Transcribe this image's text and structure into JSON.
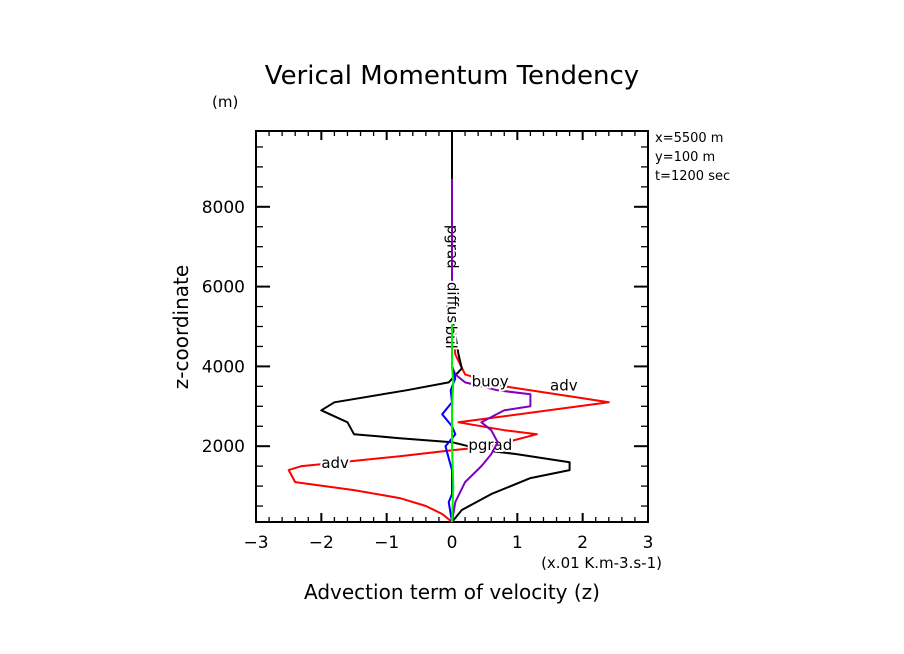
{
  "chart_data": {
    "type": "line",
    "title": "Verical Momentum Tendency",
    "xlabel": "Advection term of velocity (z)",
    "xunits": "(x.01 K.m-3.s-1)",
    "ylabel": "z-coordinate",
    "yunits": "(m)",
    "xlim": [
      -3,
      3
    ],
    "ylim": [
      100,
      9900
    ],
    "xticks": [
      -3,
      -2,
      -1,
      0,
      1,
      2,
      3
    ],
    "xtick_labels": [
      "−3",
      "−2",
      "−1",
      "0",
      "1",
      "2",
      "3"
    ],
    "yticks": [
      2000,
      4000,
      6000,
      8000
    ],
    "ytick_labels": [
      "2000",
      "4000",
      "6000",
      "8000"
    ],
    "grid": false,
    "annotations": [
      "x=5500 m",
      "y=100 m",
      "t=1200 sec"
    ],
    "series": [
      {
        "name": "adv",
        "color": "#ff0000",
        "points": [
          [
            0,
            100
          ],
          [
            -0.15,
            300
          ],
          [
            -0.4,
            500
          ],
          [
            -0.8,
            700
          ],
          [
            -1.5,
            900
          ],
          [
            -2.4,
            1100
          ],
          [
            -2.5,
            1400
          ],
          [
            -2.3,
            1500
          ],
          [
            -1.7,
            1600
          ],
          [
            -0.8,
            1750
          ],
          [
            0,
            1900
          ],
          [
            0.6,
            2000
          ],
          [
            1.3,
            2300
          ],
          [
            0.8,
            2400
          ],
          [
            0.1,
            2600
          ],
          [
            2.4,
            3100
          ],
          [
            1.6,
            3300
          ],
          [
            0.8,
            3500
          ],
          [
            0.2,
            3800
          ],
          [
            0.05,
            4300
          ],
          [
            0.02,
            5000
          ],
          [
            0,
            6000
          ]
        ],
        "label_positions": [
          {
            "x": -2.0,
            "z": 1450
          },
          {
            "x": 1.5,
            "z": 3400
          }
        ]
      },
      {
        "name": "pgrad",
        "color": "#000000",
        "points": [
          [
            0,
            100
          ],
          [
            0.15,
            400
          ],
          [
            0.6,
            800
          ],
          [
            1.2,
            1200
          ],
          [
            1.8,
            1400
          ],
          [
            1.8,
            1600
          ],
          [
            1.0,
            1800
          ],
          [
            0.5,
            1900
          ],
          [
            0,
            2100
          ],
          [
            -0.8,
            2200
          ],
          [
            -1.5,
            2300
          ],
          [
            -1.6,
            2600
          ],
          [
            -2.0,
            2900
          ],
          [
            -1.8,
            3100
          ],
          [
            -0.7,
            3400
          ],
          [
            -0.05,
            3600
          ],
          [
            0.15,
            3950
          ],
          [
            0.1,
            4300
          ],
          [
            0.05,
            4800
          ],
          [
            0.02,
            5500
          ],
          [
            0,
            6200
          ],
          [
            0,
            9900
          ]
        ],
        "label_positions": [
          {
            "x": 0.25,
            "z": 1900
          },
          {
            "x": 0,
            "z": 7000
          }
        ]
      },
      {
        "name": "buoy",
        "color": "#7f00bf",
        "points": [
          [
            0,
            100
          ],
          [
            0.05,
            600
          ],
          [
            0.2,
            1100
          ],
          [
            0.45,
            1500
          ],
          [
            0.6,
            1800
          ],
          [
            0.7,
            2100
          ],
          [
            0.6,
            2400
          ],
          [
            0.45,
            2600
          ],
          [
            0.8,
            2900
          ],
          [
            1.2,
            3000
          ],
          [
            1.2,
            3300
          ],
          [
            0.7,
            3400
          ],
          [
            0.2,
            3600
          ],
          [
            0.05,
            3800
          ],
          [
            0,
            4000
          ],
          [
            0,
            8700
          ]
        ],
        "label_positions": [
          {
            "x": 0.3,
            "z": 3500
          }
        ]
      },
      {
        "name": "turbul",
        "color": "#0000ff",
        "points": [
          [
            0,
            100
          ],
          [
            -0.05,
            600
          ],
          [
            0,
            800
          ],
          [
            0,
            1400
          ],
          [
            -0.05,
            1700
          ],
          [
            -0.1,
            2000
          ],
          [
            0.05,
            2300
          ],
          [
            0,
            2500
          ],
          [
            -0.15,
            2800
          ],
          [
            0,
            3100
          ],
          [
            -0.02,
            3400
          ],
          [
            0.05,
            3700
          ],
          [
            0,
            4000
          ],
          [
            0,
            5000
          ]
        ],
        "label_positions": [
          {
            "x": -0.02,
            "z": 5000
          }
        ]
      },
      {
        "name": "diffus",
        "color": "#00ee00",
        "points": [
          [
            0,
            100
          ],
          [
            0.02,
            1000
          ],
          [
            0,
            2000
          ],
          [
            0,
            3000
          ],
          [
            0.02,
            3600
          ],
          [
            0,
            4000
          ],
          [
            0,
            5500
          ]
        ],
        "label_positions": [
          {
            "x": 0,
            "z": 5600
          }
        ]
      }
    ]
  }
}
